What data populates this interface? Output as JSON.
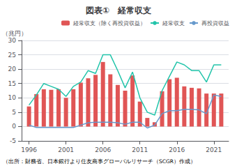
{
  "chart_data": {
    "type": "bar",
    "title": "図表①　経常収支",
    "ylabel": "（兆円）",
    "footnote": "（出所：財務省、日本銀行より住友商事グローバルリサーチ（SCGR）作成）",
    "x": [
      1996,
      1997,
      1998,
      1999,
      2000,
      2001,
      2002,
      2003,
      2004,
      2005,
      2006,
      2007,
      2008,
      2009,
      2010,
      2011,
      2012,
      2013,
      2014,
      2015,
      2016,
      2017,
      2018,
      2019,
      2020,
      2021,
      2022
    ],
    "series": [
      {
        "name": "経常収支（除く再投資収益）",
        "type": "bar",
        "color": "#e05555",
        "values": [
          7.0,
          11.3,
          13.0,
          12.8,
          13.0,
          10.0,
          13.0,
          15.3,
          16.8,
          18.0,
          22.5,
          18.2,
          14.5,
          12.5,
          17.8,
          8.7,
          3.0,
          1.5,
          12.3,
          16.5,
          17.0,
          14.0,
          13.5,
          13.3,
          11.5,
          11.5,
          11.5
        ]
      },
      {
        "name": "経常収支",
        "type": "line",
        "color": "#22c4aa",
        "values": [
          7.5,
          11.0,
          15.0,
          14.0,
          13.0,
          10.5,
          14.0,
          15.5,
          19.5,
          18.5,
          25.0,
          25.0,
          19.5,
          13.5,
          19.0,
          10.0,
          5.0,
          4.0,
          12.5,
          17.5,
          22.5,
          21.5,
          19.5,
          19.5,
          15.5,
          21.5,
          21.5
        ]
      },
      {
        "name": "再投資収益",
        "type": "line",
        "color": "#6699cc",
        "values": [
          0.5,
          -0.3,
          -0.3,
          -0.3,
          -0.3,
          -0.3,
          -0.3,
          0.5,
          1.3,
          1.5,
          1.5,
          1.5,
          1.3,
          0.8,
          1.5,
          1.5,
          -0.5,
          0.5,
          4.5,
          5.5,
          5.5,
          6.0,
          6.0,
          5.8,
          4.5,
          11.0,
          10.5
        ]
      }
    ],
    "xlim": [
      1995,
      2023
    ],
    "xticks": [
      1996,
      2001,
      2006,
      2011,
      2016,
      2021
    ],
    "ylim": [
      -5,
      30
    ],
    "yticks": [
      -5,
      0,
      5,
      10,
      15,
      20,
      25,
      30
    ],
    "grid": true,
    "legend": "upper right"
  }
}
